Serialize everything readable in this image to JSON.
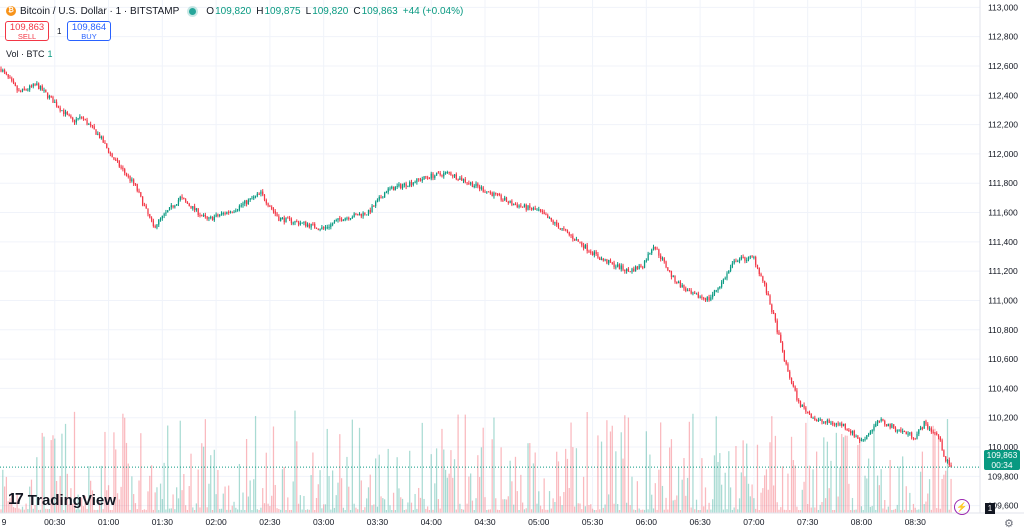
{
  "legend": {
    "coin_glyph": "₿",
    "symbol": "Bitcoin / U.S. Dollar · 1 · BITSTAMP",
    "o_label": "O",
    "o_value": "109,820",
    "h_label": "H",
    "h_value": "109,875",
    "l_label": "L",
    "l_value": "109,820",
    "c_label": "C",
    "c_value": "109,863",
    "change": "+44 (+0.04%)"
  },
  "trade": {
    "sell_price": "109,863",
    "sell_label": "SELL",
    "spread": "1",
    "buy_price": "109,864",
    "buy_label": "BUY"
  },
  "volume_legend": {
    "label": "Vol · BTC",
    "value": "1"
  },
  "logo": {
    "mark": "17",
    "text": "TradingView"
  },
  "price_badge": {
    "price": "109,863",
    "countdown": "00:34"
  },
  "flag_count": "1",
  "colors": {
    "up": "#089981",
    "down": "#f23645",
    "grid": "#f0f3fa",
    "axis_text": "#131722"
  },
  "chart_data": {
    "type": "candlestick",
    "symbol": "Bitcoin / U.S. Dollar",
    "interval": "1",
    "exchange": "BITSTAMP",
    "ylim": [
      109550,
      113050
    ],
    "y_ticks": [
      109600,
      109800,
      110000,
      110200,
      110400,
      110600,
      110800,
      111000,
      111200,
      111400,
      111600,
      111800,
      112000,
      112200,
      112400,
      112600,
      112800,
      113000
    ],
    "y_tick_labels": [
      "109,600",
      "109,800",
      "110,000",
      "110,200",
      "110,400",
      "110,600",
      "110,800",
      "111,000",
      "111,200",
      "111,400",
      "111,600",
      "111,800",
      "112,000",
      "112,200",
      "112,400",
      "112,600",
      "112,800",
      "113,000"
    ],
    "x_tick_labels": [
      "00:30",
      "01:00",
      "01:30",
      "02:00",
      "02:30",
      "03:00",
      "03:30",
      "04:00",
      "04:30",
      "05:00",
      "05:30",
      "06:00",
      "06:30",
      "07:00",
      "07:30",
      "08:00",
      "08:30"
    ],
    "x_first_label": "9",
    "minutes_visible": 540,
    "x_tick_start_minute": 30,
    "x_tick_step_minutes": 30,
    "anchor_prices": [
      [
        0,
        112580
      ],
      [
        10,
        112420
      ],
      [
        20,
        112470
      ],
      [
        30,
        112350
      ],
      [
        40,
        112220
      ],
      [
        45,
        112250
      ],
      [
        55,
        112120
      ],
      [
        62,
        111980
      ],
      [
        75,
        111780
      ],
      [
        85,
        111500
      ],
      [
        100,
        111700
      ],
      [
        115,
        111550
      ],
      [
        130,
        111620
      ],
      [
        145,
        111730
      ],
      [
        155,
        111560
      ],
      [
        170,
        111520
      ],
      [
        180,
        111490
      ],
      [
        190,
        111560
      ],
      [
        205,
        111600
      ],
      [
        215,
        111750
      ],
      [
        240,
        111850
      ],
      [
        250,
        111870
      ],
      [
        265,
        111780
      ],
      [
        272,
        111740
      ],
      [
        285,
        111660
      ],
      [
        300,
        111610
      ],
      [
        305,
        111560
      ],
      [
        320,
        111420
      ],
      [
        335,
        111280
      ],
      [
        350,
        111200
      ],
      [
        358,
        111240
      ],
      [
        364,
        111380
      ],
      [
        375,
        111150
      ],
      [
        385,
        111040
      ],
      [
        395,
        111010
      ],
      [
        402,
        111120
      ],
      [
        410,
        111280
      ],
      [
        420,
        111290
      ],
      [
        426,
        111100
      ],
      [
        432,
        110850
      ],
      [
        438,
        110550
      ],
      [
        445,
        110300
      ],
      [
        455,
        110180
      ],
      [
        470,
        110150
      ],
      [
        480,
        110040
      ],
      [
        490,
        110180
      ],
      [
        500,
        110120
      ],
      [
        510,
        110070
      ],
      [
        515,
        110160
      ],
      [
        523,
        110070
      ],
      [
        527,
        109910
      ],
      [
        530,
        109863
      ]
    ],
    "last_price": 109863,
    "last_price_label": "109,863",
    "countdown": "00:34"
  }
}
